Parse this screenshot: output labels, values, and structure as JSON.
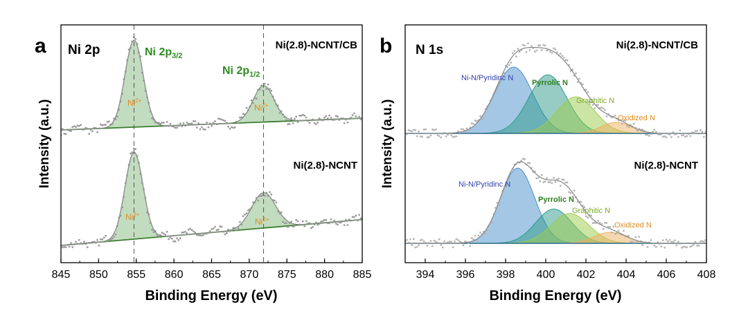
{
  "colors": {
    "axis": "#000000",
    "raw_points": "#9a9a9a",
    "envelope": "#8c8c8c",
    "baseline": "#3a7d2e",
    "ni_fill": "#8fc08a",
    "ni_line": "#2f7a2a",
    "ni_label_green": "#2e8b1f",
    "ni_label_orange": "#e08a1e",
    "n_pyridinic": "#4a8fcc",
    "n_pyrrolic": "#2e9a8a",
    "n_graphitic": "#9ccc4a",
    "n_oxidized": "#f0b060",
    "n_label_blue": "#2f3fa8",
    "n_label_green": "#2e7d1f",
    "n_label_lime": "#7aa82a",
    "n_label_orange": "#e08a1e"
  },
  "chart_data": [
    {
      "type": "line",
      "panel_letter": "a",
      "title": "Ni 2p",
      "xlabel": "Binding Energy (eV)",
      "ylabel": "Intensity (a.u.)",
      "xlim": [
        845,
        885
      ],
      "xticks": [
        845,
        850,
        855,
        860,
        865,
        870,
        875,
        880,
        885
      ],
      "reference_lines_x": [
        854.7,
        871.9
      ],
      "peak_labels": [
        {
          "text": "Ni 2p",
          "sub": "3/2"
        },
        {
          "text": "Ni 2p",
          "sub": "1/2"
        }
      ],
      "component_label_main": "Ni",
      "component_label_sup": "2+",
      "series": [
        {
          "name": "Ni(2.8)-NCNT/CB",
          "offset": 0.55,
          "baseline": [
            [
              845,
              0.0
            ],
            [
              885,
              0.1
            ]
          ],
          "components": [
            {
              "center": 854.7,
              "height": 0.74,
              "width": 1.2
            },
            {
              "center": 871.9,
              "height": 0.31,
              "width": 1.4
            }
          ]
        },
        {
          "name": "Ni(2.8)-NCNT",
          "offset": 0.0,
          "baseline": [
            [
              845,
              0.0
            ],
            [
              885,
              0.22
            ]
          ],
          "components": [
            {
              "center": 854.7,
              "height": 0.74,
              "width": 1.2
            },
            {
              "center": 871.9,
              "height": 0.3,
              "width": 1.6
            }
          ]
        }
      ]
    },
    {
      "type": "line",
      "panel_letter": "b",
      "title": "N 1s",
      "xlabel": "Binding Energy (eV)",
      "ylabel": "Intensity (a.u.)",
      "xlim": [
        393,
        408
      ],
      "xticks": [
        394,
        396,
        398,
        400,
        402,
        404,
        406,
        408
      ],
      "component_names": [
        "Ni-N/Pyridinc N",
        "Pyrrolic N",
        "Graphitic N",
        "Oxidized N"
      ],
      "series": [
        {
          "name": "Ni(2.8)-NCNT/CB",
          "offset": 0.55,
          "components": [
            {
              "center": 398.4,
              "height": 0.6,
              "width": 0.95
            },
            {
              "center": 400.1,
              "height": 0.53,
              "width": 0.95
            },
            {
              "center": 401.5,
              "height": 0.33,
              "width": 0.95
            },
            {
              "center": 403.5,
              "height": 0.1,
              "width": 0.75
            }
          ]
        },
        {
          "name": "Ni(2.8)-NCNT",
          "offset": 0.0,
          "components": [
            {
              "center": 398.6,
              "height": 0.68,
              "width": 0.85
            },
            {
              "center": 400.4,
              "height": 0.31,
              "width": 0.9
            },
            {
              "center": 401.2,
              "height": 0.27,
              "width": 0.95
            },
            {
              "center": 403.2,
              "height": 0.1,
              "width": 0.8
            }
          ]
        }
      ]
    }
  ]
}
